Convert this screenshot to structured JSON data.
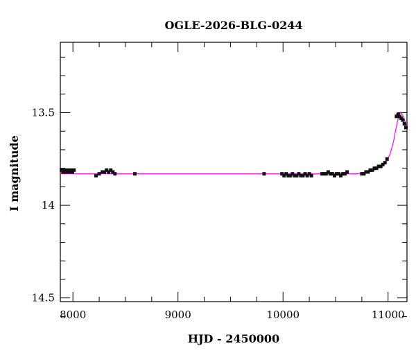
{
  "chart_data": {
    "type": "scatter",
    "title": "OGLE-2026-BLG-0244",
    "xlabel": "HJD - 2450000",
    "ylabel": "I magnitude",
    "xlim": [
      7880,
      11180
    ],
    "ylim": [
      14.52,
      13.12
    ],
    "y_inverted": true,
    "grid": false,
    "x_ticks": [
      {
        "value": 8000,
        "label": "8000"
      },
      {
        "value": 9000,
        "label": "9000"
      },
      {
        "value": 10000,
        "label": "10000"
      },
      {
        "value": 11000,
        "label": "11000"
      }
    ],
    "y_ticks": [
      {
        "value": 13.5,
        "label": "13.5"
      },
      {
        "value": 14.0,
        "label": "14"
      },
      {
        "value": 14.5,
        "label": "14.5"
      }
    ],
    "colors": {
      "data": "#111111",
      "model": "#ff00ff"
    },
    "series": [
      {
        "kind": "data-points",
        "x": [
          7890,
          7905,
          7920,
          7935,
          7950,
          7965,
          7980,
          7995,
          8010,
          8220,
          8250,
          8280,
          8300,
          8320,
          8340,
          8360,
          8380,
          8400,
          8590,
          9820,
          9990,
          10010,
          10030,
          10050,
          10070,
          10090,
          10110,
          10130,
          10150,
          10170,
          10190,
          10210,
          10230,
          10250,
          10270,
          10370,
          10390,
          10410,
          10430,
          10450,
          10470,
          10490,
          10510,
          10530,
          10550,
          10570,
          10590,
          10610,
          10750,
          10770,
          10790,
          10810,
          10830,
          10850,
          10870,
          10890,
          10910,
          10930,
          10950,
          10970,
          10990,
          11080,
          11095,
          11110,
          11125,
          11140,
          11155,
          11170
        ],
        "y": [
          13.81,
          13.82,
          13.81,
          13.82,
          13.81,
          13.82,
          13.81,
          13.82,
          13.81,
          13.84,
          13.83,
          13.82,
          13.82,
          13.81,
          13.82,
          13.81,
          13.82,
          13.83,
          13.83,
          13.83,
          13.83,
          13.84,
          13.83,
          13.84,
          13.84,
          13.83,
          13.84,
          13.84,
          13.83,
          13.84,
          13.84,
          13.83,
          13.84,
          13.83,
          13.84,
          13.83,
          13.83,
          13.83,
          13.82,
          13.83,
          13.83,
          13.84,
          13.83,
          13.83,
          13.84,
          13.83,
          13.83,
          13.82,
          13.83,
          13.83,
          13.82,
          13.82,
          13.81,
          13.81,
          13.8,
          13.8,
          13.79,
          13.79,
          13.78,
          13.77,
          13.75,
          13.52,
          13.51,
          13.52,
          13.53,
          13.54,
          13.56,
          13.58
        ]
      },
      {
        "kind": "model",
        "x": [
          7880,
          8500,
          9000,
          9500,
          10000,
          10400,
          10700,
          10800,
          10850,
          10900,
          10950,
          10990,
          11020,
          11050,
          11070,
          11090,
          11100,
          11110,
          11120,
          11130,
          11140,
          11150,
          11160,
          11170,
          11180
        ],
        "y": [
          13.83,
          13.83,
          13.83,
          13.83,
          13.83,
          13.83,
          13.83,
          13.82,
          13.815,
          13.8,
          13.785,
          13.76,
          13.72,
          13.66,
          13.6,
          13.545,
          13.52,
          13.505,
          13.5,
          13.505,
          13.515,
          13.53,
          13.545,
          13.56,
          13.575
        ]
      }
    ]
  }
}
